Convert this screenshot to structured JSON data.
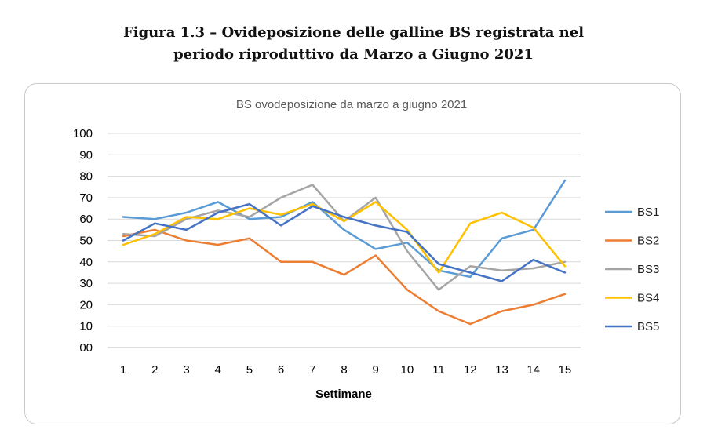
{
  "caption": {
    "line1": "Figura 1.3 – Ovideposizione delle galline BS registrata nel",
    "line2": "periodo riproduttivo da Marzo a Giugno 2021"
  },
  "chart_data": {
    "type": "line",
    "title": "BS ovodeposizione da marzo a giugno 2021",
    "xlabel": "Settimane",
    "ylabel": "",
    "x": [
      1,
      2,
      3,
      4,
      5,
      6,
      7,
      8,
      9,
      10,
      11,
      12,
      13,
      14,
      15
    ],
    "ylim": [
      0,
      100
    ],
    "yticks": [
      "00",
      "10",
      "20",
      "30",
      "40",
      "50",
      "60",
      "70",
      "80",
      "90",
      "100"
    ],
    "grid": true,
    "legend": "right",
    "series": [
      {
        "name": "BS1",
        "color": "#5B9BD5",
        "values": [
          61,
          60,
          63,
          68,
          60,
          61,
          68,
          55,
          46,
          49,
          36,
          33,
          51,
          55,
          78
        ]
      },
      {
        "name": "BS2",
        "color": "#ED7D31",
        "values": [
          52,
          55,
          50,
          48,
          51,
          40,
          40,
          34,
          43,
          27,
          17,
          11,
          17,
          20,
          25
        ]
      },
      {
        "name": "BS3",
        "color": "#A5A5A5",
        "values": [
          53,
          52,
          60,
          64,
          61,
          70,
          76,
          59,
          70,
          45,
          27,
          38,
          36,
          37,
          40
        ]
      },
      {
        "name": "BS4",
        "color": "#FFC000",
        "values": [
          48,
          53,
          61,
          60,
          65,
          62,
          67,
          59,
          68,
          55,
          35,
          58,
          63,
          56,
          38
        ]
      },
      {
        "name": "BS5",
        "color": "#4472C4",
        "values": [
          50,
          58,
          55,
          63,
          67,
          57,
          66,
          61,
          57,
          54,
          39,
          35,
          31,
          41,
          35
        ]
      }
    ]
  }
}
